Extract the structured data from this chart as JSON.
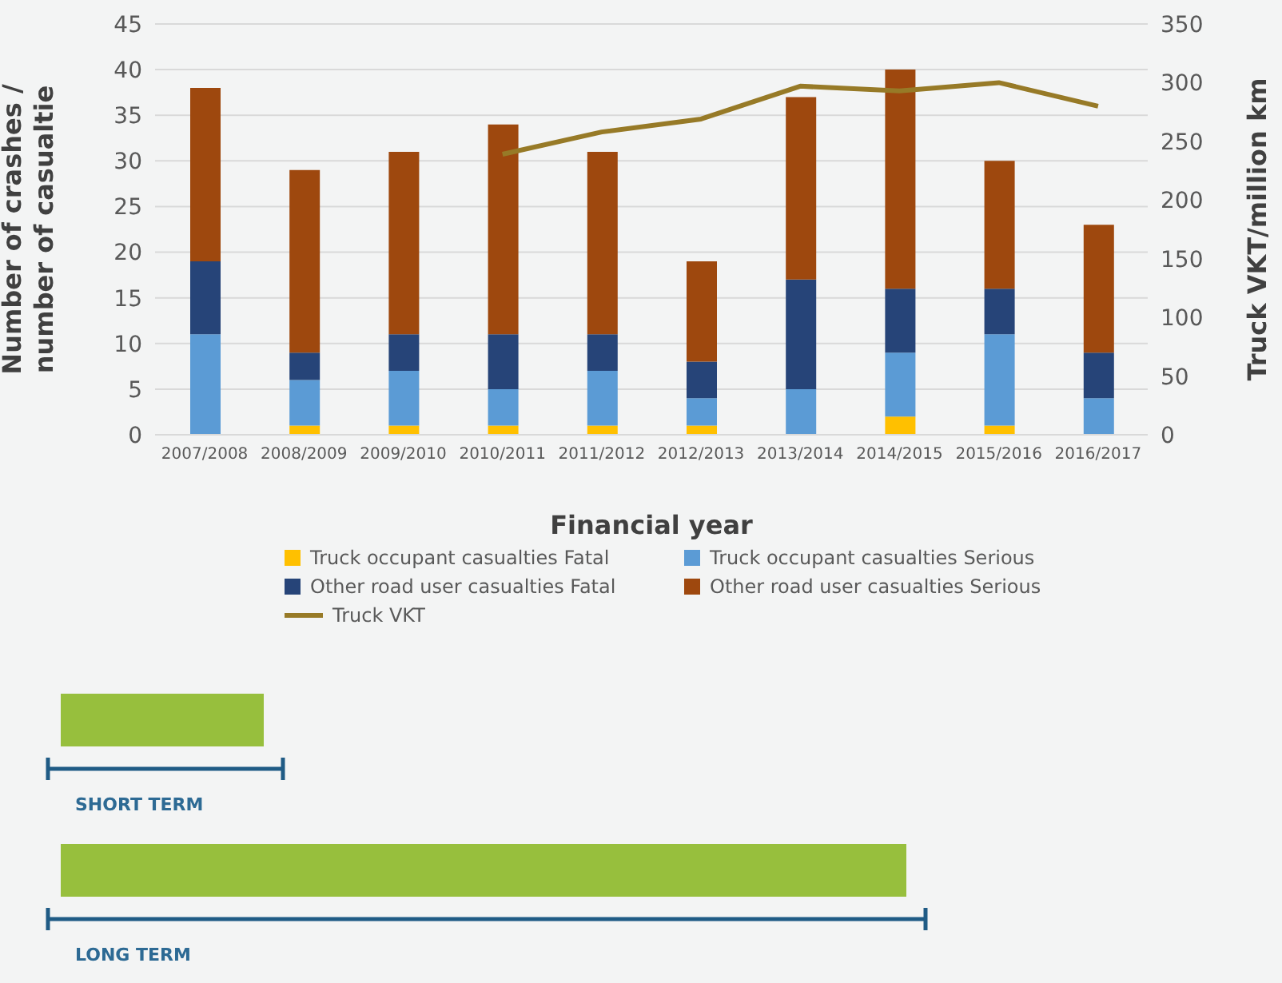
{
  "chart_data": {
    "type": "bar",
    "stacked": true,
    "xlabel": "Financial year",
    "ylabel": "Number of crashes / number of casualtie",
    "y2label": "Truck VKT/million km",
    "categories": [
      "2007/2008",
      "2008/2009",
      "2009/2010",
      "2010/2011",
      "2011/2012",
      "2012/2013",
      "2013/2014",
      "2014/2015",
      "2015/2016",
      "2016/2017"
    ],
    "series": [
      {
        "name": "Truck occupant casualties Fatal",
        "color": "#ffc000",
        "values": [
          0,
          1,
          1,
          1,
          1,
          1,
          0,
          2,
          1,
          0
        ]
      },
      {
        "name": "Truck occupant casualties Serious",
        "color": "#5b9bd5",
        "values": [
          11,
          5,
          6,
          4,
          6,
          3,
          5,
          7,
          10,
          4
        ]
      },
      {
        "name": "Other road user casualties Fatal",
        "color": "#264478",
        "values": [
          8,
          3,
          4,
          6,
          4,
          4,
          12,
          7,
          5,
          5
        ]
      },
      {
        "name": "Other road user casualties Serious",
        "color": "#9e480e",
        "values": [
          19,
          20,
          20,
          23,
          20,
          11,
          20,
          24,
          14,
          14
        ]
      },
      {
        "name": "Truck VKT",
        "type": "line",
        "axis": "y2",
        "color": "#977a27",
        "values": [
          null,
          null,
          null,
          239,
          258,
          269,
          297,
          293,
          300,
          280
        ]
      }
    ],
    "ylim": [
      0,
      45
    ],
    "yticks": [
      0,
      5,
      10,
      15,
      20,
      25,
      30,
      35,
      40,
      45
    ],
    "y2lim": [
      0,
      350
    ],
    "y2ticks": [
      0,
      50,
      100,
      150,
      200,
      250,
      300,
      350
    ],
    "grid": "y",
    "legend": "bottom",
    "marker": "none",
    "annotations": [
      "SHORT TERM",
      "LONG TERM"
    ]
  }
}
